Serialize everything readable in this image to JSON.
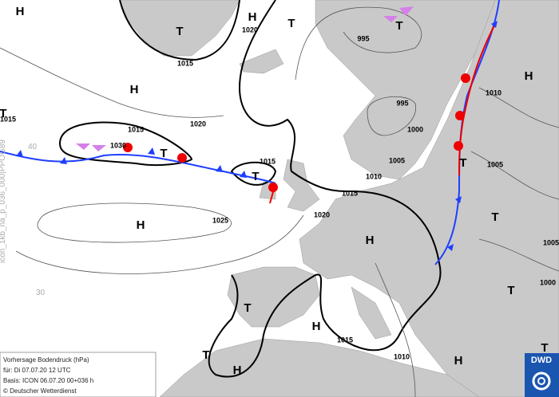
{
  "centers": [
    "H",
    "T",
    "H",
    "T",
    "T",
    "H",
    "H",
    "T",
    "T",
    "T",
    "T",
    "H",
    "H",
    "T",
    "T",
    "T",
    "H",
    "T",
    "H",
    "H",
    "T"
  ],
  "isobar_labels": [
    "1020",
    "1015",
    "995",
    "995",
    "1010",
    "1015",
    "1015",
    "1020",
    "1030",
    "1000",
    "1005",
    "1005",
    "1010",
    "1015",
    "1015",
    "1020",
    "1025",
    "1005",
    "1000",
    "1015",
    "1010"
  ],
  "latitude_labels": [
    "40",
    "30"
  ],
  "side_text": "icon_1kb_na_p_036_000|PPOG89",
  "info": [
    "Vorhersage Bodendruck (hPa)",
    "für:  Di 07.07.20  12 UTC",
    "Basis: ICON  06.07.20 00+036 h",
    "© Deutscher Wetterdienst"
  ],
  "logo": "DWD"
}
